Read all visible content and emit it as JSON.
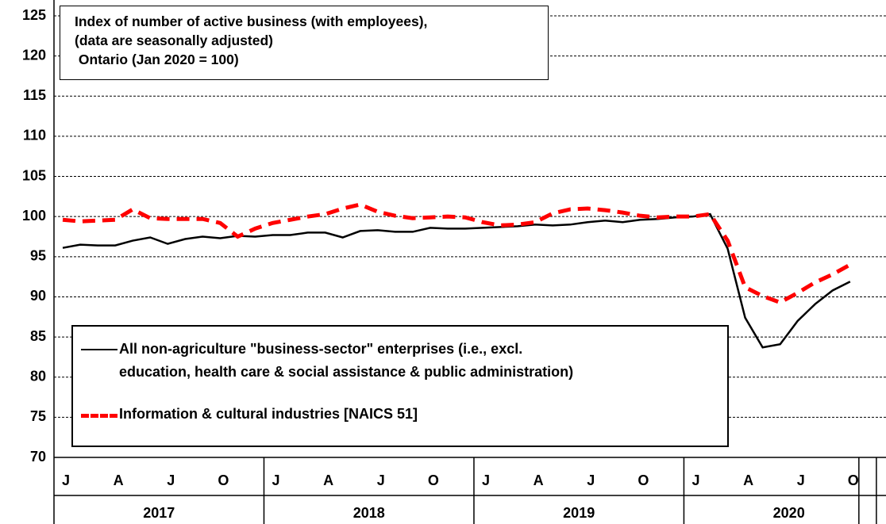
{
  "chart_data": {
    "type": "line",
    "title": "Index of number of active business (with employees),\n(data are seasonally adjusted)\n Ontario (Jan 2020 = 100)",
    "categories": [
      "J",
      null,
      null,
      "A",
      null,
      null,
      "J",
      null,
      null,
      "O",
      null,
      null,
      "J",
      null,
      null,
      "A",
      null,
      null,
      "J",
      null,
      null,
      "O",
      null,
      null,
      "J",
      null,
      null,
      "A",
      null,
      null,
      "J",
      null,
      null,
      "O",
      null,
      null,
      "J",
      null,
      null,
      "A",
      null,
      null,
      "J",
      null,
      null,
      "O"
    ],
    "years": [
      "2017",
      "2018",
      "2019",
      "2020"
    ],
    "series": [
      {
        "name": "All non-agriculture \"business-sector\" enterprises (i.e., excl.\neducation, health care & social assistance & public administration)",
        "color": "#000000",
        "dashed": false,
        "values": [
          96.1,
          96.5,
          96.4,
          96.4,
          97.0,
          97.4,
          96.6,
          97.2,
          97.5,
          97.3,
          97.6,
          97.5,
          97.7,
          97.7,
          98.0,
          98.0,
          97.4,
          98.2,
          98.3,
          98.1,
          98.1,
          98.6,
          98.5,
          98.5,
          98.6,
          98.7,
          98.8,
          99.0,
          98.9,
          99.0,
          99.3,
          99.5,
          99.3,
          99.6,
          99.7,
          99.9,
          100.0,
          100.3,
          96.0,
          87.4,
          83.7,
          84.1,
          87.0,
          89.1,
          90.8,
          91.9
        ]
      },
      {
        "name": "Information & cultural industries [NAICS 51]",
        "color": "#ff0000",
        "dashed": true,
        "values": [
          99.6,
          99.4,
          99.5,
          99.6,
          100.9,
          99.8,
          99.7,
          99.7,
          99.7,
          99.2,
          97.5,
          98.5,
          99.2,
          99.6,
          100.0,
          100.3,
          101.0,
          101.5,
          100.6,
          100.1,
          99.8,
          99.9,
          100.0,
          99.9,
          99.3,
          98.9,
          99.0,
          99.3,
          100.4,
          100.9,
          101.0,
          100.8,
          100.5,
          100.1,
          99.9,
          100.0,
          100.0,
          100.3,
          97.0,
          91.2,
          90.1,
          89.3,
          90.5,
          91.8,
          92.8,
          94.0
        ]
      }
    ],
    "ylim": [
      70,
      125
    ],
    "yticks": [
      70,
      75,
      80,
      85,
      90,
      95,
      100,
      105,
      110,
      115,
      120,
      125
    ],
    "grid": true
  }
}
